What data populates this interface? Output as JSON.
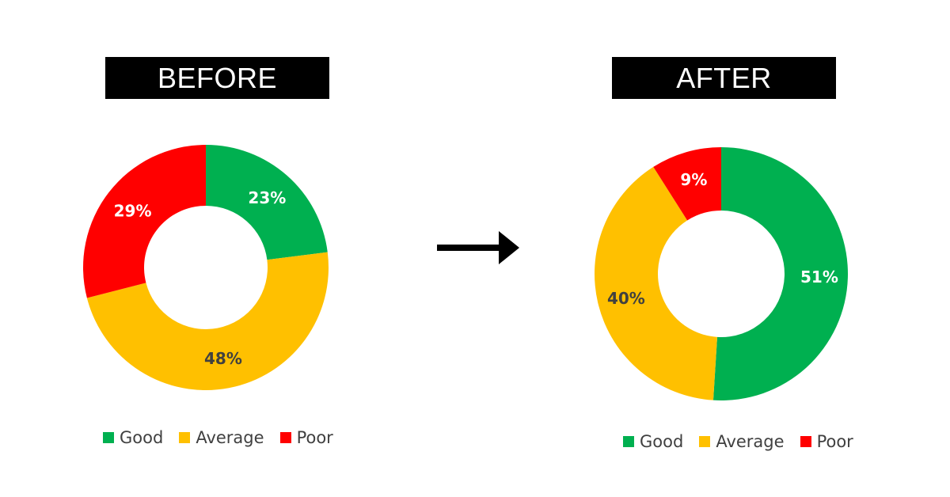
{
  "titles": {
    "before": "BEFORE",
    "after": "AFTER"
  },
  "colors": {
    "good": "#00B050",
    "average": "#FFC000",
    "poor": "#FF0000"
  },
  "chart_data": [
    {
      "type": "pie",
      "title": "BEFORE",
      "donut": true,
      "categories": [
        "Good",
        "Average",
        "Poor"
      ],
      "values": [
        23,
        48,
        29
      ],
      "labels": [
        "23%",
        "48%",
        "29%"
      ],
      "legend": "bottom"
    },
    {
      "type": "pie",
      "title": "AFTER",
      "donut": true,
      "categories": [
        "Good",
        "Average",
        "Poor"
      ],
      "values": [
        51,
        40,
        9
      ],
      "labels": [
        "51%",
        "40%",
        "9%"
      ],
      "legend": "bottom"
    }
  ],
  "icons": {
    "transition": "right-arrow-icon"
  }
}
